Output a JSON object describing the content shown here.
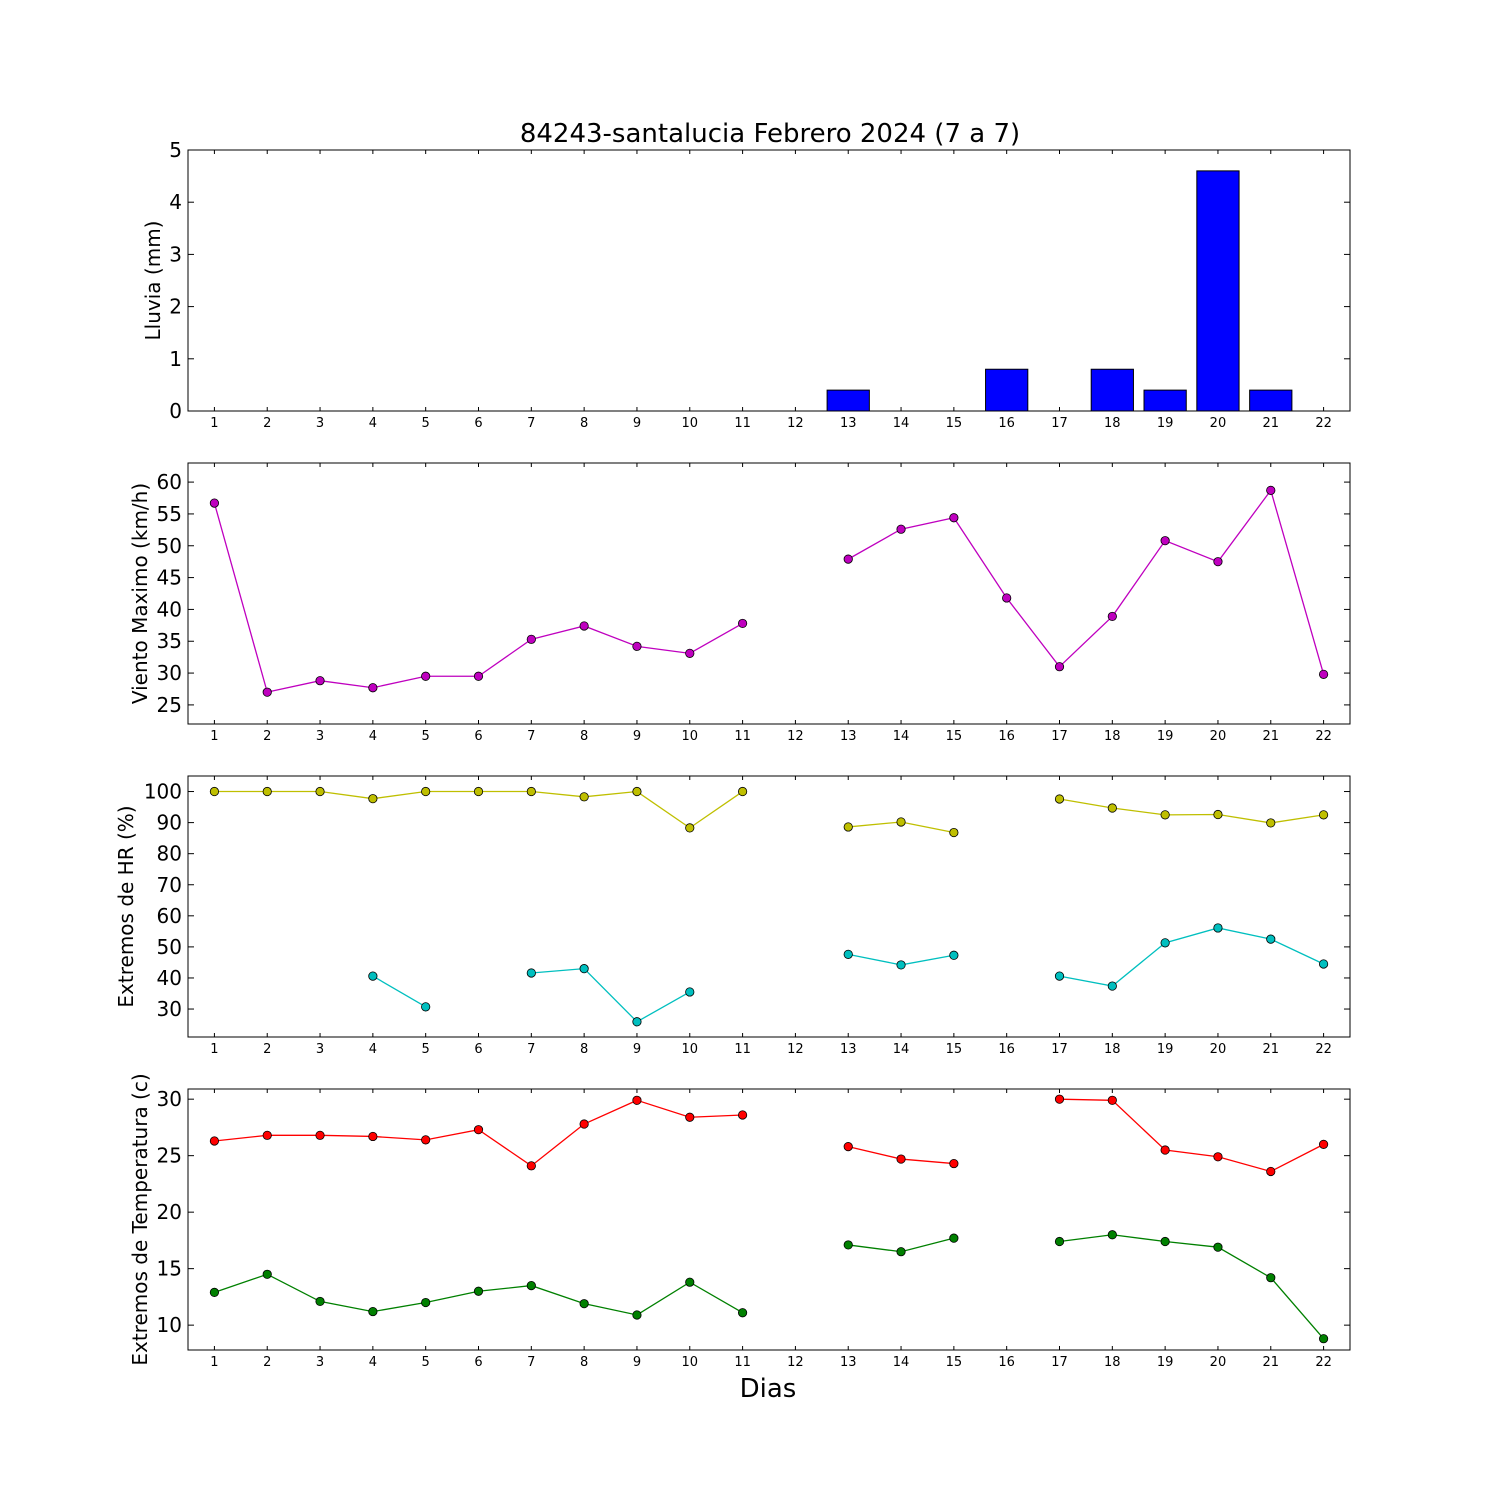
{
  "title": "84243-santalucia Febrero 2024  (7 a 7)",
  "xlabel": "Dias",
  "colors": {
    "rain": "#0000ff",
    "wind": "#bf00bf",
    "hr_max": "#bfbf00",
    "hr_min": "#00bfbf",
    "temp_max": "#ff0000",
    "temp_min": "#008000"
  },
  "chart_data": [
    {
      "type": "bar",
      "ylabel": "Lluvia (mm)",
      "x": [
        1,
        2,
        3,
        4,
        5,
        6,
        7,
        8,
        9,
        10,
        11,
        12,
        13,
        14,
        15,
        16,
        17,
        18,
        19,
        20,
        21,
        22
      ],
      "xlim": [
        0.5,
        22.5
      ],
      "ylim": [
        0,
        5
      ],
      "yticks": [
        0,
        1,
        2,
        3,
        4,
        5
      ],
      "series": [
        {
          "values": [
            0,
            0,
            0,
            0,
            0,
            0,
            0,
            0,
            0,
            0,
            0,
            0,
            0.4,
            0,
            0,
            0.8,
            0,
            0.8,
            0.4,
            4.6,
            0.4,
            0
          ]
        }
      ]
    },
    {
      "type": "line",
      "ylabel": "Viento Maximo (km/h)",
      "x": [
        1,
        2,
        3,
        4,
        5,
        6,
        7,
        8,
        9,
        10,
        11,
        12,
        13,
        14,
        15,
        16,
        17,
        18,
        19,
        20,
        21,
        22
      ],
      "xlim": [
        0.5,
        22.5
      ],
      "ylim": [
        22,
        63
      ],
      "yticks": [
        25,
        30,
        35,
        40,
        45,
        50,
        55,
        60
      ],
      "series": [
        {
          "values": [
            56.7,
            27.0,
            28.8,
            27.7,
            29.5,
            29.5,
            35.3,
            37.4,
            34.2,
            33.1,
            37.8,
            null,
            47.9,
            52.6,
            54.4,
            41.8,
            31.0,
            38.9,
            50.8,
            47.5,
            58.7,
            29.8
          ]
        }
      ]
    },
    {
      "type": "line",
      "ylabel": "Extremos de HR (%)",
      "x": [
        1,
        2,
        3,
        4,
        5,
        6,
        7,
        8,
        9,
        10,
        11,
        12,
        13,
        14,
        15,
        16,
        17,
        18,
        19,
        20,
        21,
        22
      ],
      "xlim": [
        0.5,
        22.5
      ],
      "ylim": [
        21,
        105
      ],
      "yticks": [
        30,
        40,
        50,
        60,
        70,
        80,
        90,
        100
      ],
      "series": [
        {
          "values": [
            100,
            100,
            100,
            97.7,
            100,
            100,
            100,
            98.3,
            100,
            88.3,
            100,
            null,
            88.6,
            90.2,
            86.8,
            null,
            97.6,
            94.7,
            92.5,
            92.6,
            89.9,
            92.5
          ]
        },
        {
          "values": [
            null,
            null,
            null,
            40.6,
            30.7,
            null,
            41.6,
            43.0,
            25.9,
            35.5,
            null,
            null,
            47.6,
            44.2,
            47.3,
            null,
            40.6,
            37.4,
            51.3,
            56.1,
            52.5,
            44.5
          ]
        }
      ]
    },
    {
      "type": "line",
      "ylabel": "Extremos de Temperatura (c)",
      "x": [
        1,
        2,
        3,
        4,
        5,
        6,
        7,
        8,
        9,
        10,
        11,
        12,
        13,
        14,
        15,
        16,
        17,
        18,
        19,
        20,
        21,
        22
      ],
      "xlim": [
        0.5,
        22.5
      ],
      "ylim": [
        7.8,
        30.9
      ],
      "yticks": [
        10,
        15,
        20,
        25,
        30
      ],
      "series": [
        {
          "values": [
            26.3,
            26.8,
            26.8,
            26.7,
            26.4,
            27.3,
            24.1,
            27.8,
            29.9,
            28.4,
            28.6,
            null,
            25.8,
            24.7,
            24.3,
            null,
            30.0,
            29.9,
            25.5,
            24.9,
            23.6,
            26.0
          ]
        },
        {
          "values": [
            12.9,
            14.5,
            12.1,
            11.2,
            12.0,
            13.0,
            13.5,
            11.9,
            10.9,
            13.8,
            11.1,
            null,
            17.1,
            16.5,
            17.7,
            null,
            17.4,
            18.0,
            17.4,
            16.9,
            14.2,
            8.8
          ]
        }
      ]
    }
  ]
}
